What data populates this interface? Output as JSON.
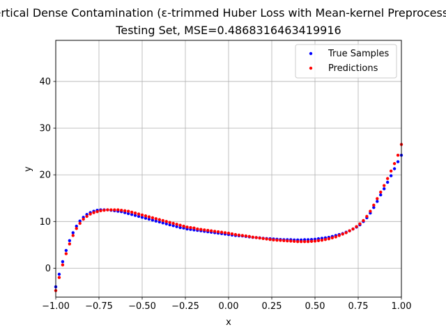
{
  "chart_data": {
    "type": "scatter",
    "title": "Vertical Dense Contamination (ε-trimmed Huber Loss with Mean-kernel Preprocessing)",
    "subtitle": "Testing Set, MSE=0.4868316463419916",
    "xlabel": "x",
    "ylabel": "y",
    "xlim": [
      -1.0,
      1.0
    ],
    "ylim": [
      -6.2,
      48.8
    ],
    "xticks": [
      -1.0,
      -0.75,
      -0.5,
      -0.25,
      0.0,
      0.25,
      0.5,
      0.75,
      1.0
    ],
    "xtick_labels": [
      "−1.00",
      "−0.75",
      "−0.50",
      "−0.25",
      "0.00",
      "0.25",
      "0.50",
      "0.75",
      "1.00"
    ],
    "yticks": [
      0,
      10,
      20,
      30,
      40
    ],
    "ytick_labels": [
      "0",
      "10",
      "20",
      "30",
      "40"
    ],
    "grid": true,
    "legend_position": "top-right",
    "series": [
      {
        "name": "True Samples",
        "color": "#0000ff",
        "x": [
          -1.0,
          -0.98,
          -0.96,
          -0.94,
          -0.92,
          -0.9,
          -0.88,
          -0.86,
          -0.84,
          -0.82,
          -0.8,
          -0.78,
          -0.76,
          -0.74,
          -0.72,
          -0.7,
          -0.68,
          -0.66,
          -0.64,
          -0.62,
          -0.6,
          -0.58,
          -0.56,
          -0.54,
          -0.52,
          -0.5,
          -0.48,
          -0.46,
          -0.44,
          -0.42,
          -0.4,
          -0.38,
          -0.36,
          -0.34,
          -0.32,
          -0.3,
          -0.28,
          -0.26,
          -0.24,
          -0.22,
          -0.2,
          -0.18,
          -0.16,
          -0.14,
          -0.12,
          -0.1,
          -0.08,
          -0.06,
          -0.04,
          -0.02,
          0.0,
          0.02,
          0.04,
          0.06,
          0.08,
          0.1,
          0.12,
          0.14,
          0.16,
          0.18,
          0.2,
          0.22,
          0.24,
          0.26,
          0.28,
          0.3,
          0.32,
          0.34,
          0.36,
          0.38,
          0.4,
          0.42,
          0.44,
          0.46,
          0.48,
          0.5,
          0.52,
          0.54,
          0.56,
          0.58,
          0.6,
          0.62,
          0.64,
          0.66,
          0.68,
          0.7,
          0.72,
          0.74,
          0.76,
          0.78,
          0.8,
          0.82,
          0.84,
          0.86,
          0.88,
          0.9,
          0.92,
          0.94,
          0.96,
          0.98,
          1.0
        ],
        "y": [
          -4.0,
          -1.3,
          1.4,
          3.8,
          5.9,
          7.6,
          9.0,
          10.1,
          10.9,
          11.5,
          11.9,
          12.2,
          12.4,
          12.5,
          12.5,
          12.5,
          12.4,
          12.3,
          12.2,
          12.1,
          11.9,
          11.7,
          11.5,
          11.3,
          11.1,
          10.9,
          10.7,
          10.5,
          10.3,
          10.1,
          9.9,
          9.7,
          9.5,
          9.3,
          9.1,
          8.9,
          8.7,
          8.6,
          8.4,
          8.3,
          8.2,
          8.1,
          8.0,
          7.9,
          7.8,
          7.7,
          7.6,
          7.5,
          7.4,
          7.3,
          7.2,
          7.1,
          7.0,
          6.95,
          6.9,
          6.8,
          6.7,
          6.6,
          6.55,
          6.5,
          6.4,
          6.35,
          6.3,
          6.25,
          6.2,
          6.15,
          6.1,
          6.1,
          6.1,
          6.05,
          6.05,
          6.05,
          6.1,
          6.1,
          6.15,
          6.2,
          6.3,
          6.4,
          6.5,
          6.6,
          6.8,
          7.0,
          7.2,
          7.4,
          7.7,
          8.0,
          8.4,
          8.8,
          9.3,
          10.0,
          10.8,
          11.8,
          13.0,
          14.3,
          15.7,
          17.0,
          18.4,
          19.8,
          21.3,
          22.8,
          24.2
        ]
      },
      {
        "name": "Predictions",
        "color": "#ff0000",
        "x": [
          -1.0,
          -0.98,
          -0.96,
          -0.94,
          -0.92,
          -0.9,
          -0.88,
          -0.86,
          -0.84,
          -0.82,
          -0.8,
          -0.78,
          -0.76,
          -0.74,
          -0.72,
          -0.7,
          -0.68,
          -0.66,
          -0.64,
          -0.62,
          -0.6,
          -0.58,
          -0.56,
          -0.54,
          -0.52,
          -0.5,
          -0.48,
          -0.46,
          -0.44,
          -0.42,
          -0.4,
          -0.38,
          -0.36,
          -0.34,
          -0.32,
          -0.3,
          -0.28,
          -0.26,
          -0.24,
          -0.22,
          -0.2,
          -0.18,
          -0.16,
          -0.14,
          -0.12,
          -0.1,
          -0.08,
          -0.06,
          -0.04,
          -0.02,
          0.0,
          0.02,
          0.04,
          0.06,
          0.08,
          0.1,
          0.12,
          0.14,
          0.16,
          0.18,
          0.2,
          0.22,
          0.24,
          0.26,
          0.28,
          0.3,
          0.32,
          0.34,
          0.36,
          0.38,
          0.4,
          0.42,
          0.44,
          0.46,
          0.48,
          0.5,
          0.52,
          0.54,
          0.56,
          0.58,
          0.6,
          0.62,
          0.64,
          0.66,
          0.68,
          0.7,
          0.72,
          0.74,
          0.76,
          0.78,
          0.8,
          0.82,
          0.84,
          0.86,
          0.88,
          0.9,
          0.92,
          0.94,
          0.96,
          0.98,
          1.0
        ],
        "y": [
          -4.8,
          -2.0,
          0.7,
          3.1,
          5.2,
          7.0,
          8.5,
          9.6,
          10.5,
          11.1,
          11.6,
          11.9,
          12.1,
          12.3,
          12.4,
          12.5,
          12.5,
          12.5,
          12.5,
          12.4,
          12.3,
          12.2,
          12.0,
          11.8,
          11.6,
          11.4,
          11.2,
          11.0,
          10.8,
          10.6,
          10.4,
          10.2,
          10.0,
          9.8,
          9.6,
          9.4,
          9.2,
          9.0,
          8.8,
          8.7,
          8.6,
          8.4,
          8.3,
          8.2,
          8.1,
          8.0,
          7.9,
          7.8,
          7.7,
          7.6,
          7.5,
          7.35,
          7.2,
          7.1,
          7.0,
          6.9,
          6.8,
          6.65,
          6.55,
          6.45,
          6.35,
          6.25,
          6.15,
          6.05,
          6.0,
          5.95,
          5.9,
          5.85,
          5.8,
          5.75,
          5.7,
          5.7,
          5.7,
          5.7,
          5.75,
          5.8,
          5.9,
          6.0,
          6.15,
          6.3,
          6.5,
          6.7,
          7.0,
          7.3,
          7.6,
          8.0,
          8.4,
          8.9,
          9.5,
          10.2,
          11.1,
          12.2,
          13.5,
          14.9,
          16.3,
          17.7,
          19.2,
          20.8,
          22.4,
          24.2,
          26.5
        ]
      }
    ]
  }
}
